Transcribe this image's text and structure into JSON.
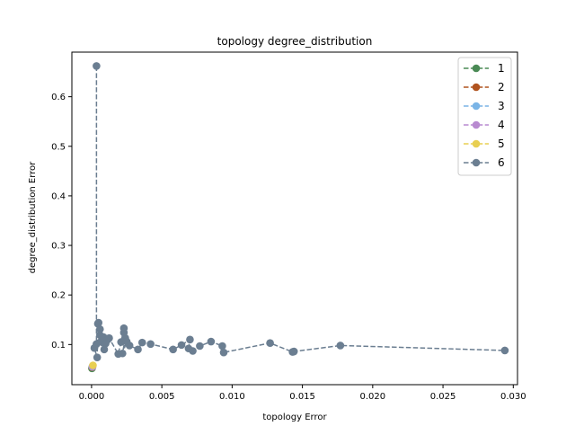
{
  "chart_data": {
    "type": "scatter",
    "title": "topology degree_distribution",
    "xlabel": "topology Error",
    "ylabel": "degree_distribution Error",
    "xlim": [
      -0.0014,
      0.0303
    ],
    "ylim": [
      0.019,
      0.69
    ],
    "xticks": [
      0.0,
      0.005,
      0.01,
      0.015,
      0.02,
      0.025,
      0.03
    ],
    "xtick_labels": [
      "0.000",
      "0.005",
      "0.010",
      "0.015",
      "0.020",
      "0.025",
      "0.030"
    ],
    "yticks": [
      0.1,
      0.2,
      0.3,
      0.4,
      0.5,
      0.6
    ],
    "ytick_labels": [
      "0.1",
      "0.2",
      "0.3",
      "0.4",
      "0.5",
      "0.6"
    ],
    "grid": false,
    "legend_position": "top-right",
    "line_style": "dashed",
    "marker": "circle",
    "series": [
      {
        "name": "1",
        "color": "#4a8a55",
        "x": [
          3e-05
        ],
        "y": [
          0.052
        ]
      },
      {
        "name": "2",
        "color": "#b0531f",
        "x": [
          5e-05
        ],
        "y": [
          0.054
        ]
      },
      {
        "name": "3",
        "color": "#7ab4e6",
        "x": [
          6e-05
        ],
        "y": [
          0.055
        ]
      },
      {
        "name": "4",
        "color": "#b88ad0",
        "x": [
          8e-05
        ],
        "y": [
          0.056
        ]
      },
      {
        "name": "5",
        "color": "#e8cf52",
        "x": [
          0.0001
        ],
        "y": [
          0.058
        ]
      },
      {
        "name": "6",
        "color": "#6b7e91",
        "x": [
          0.00035,
          0.00035,
          0.0002,
          0.0004,
          0.00045,
          0.0005,
          0.0006,
          0.0006,
          0.0007,
          0.0008,
          0.00085,
          0.0009,
          0.001,
          0.00115,
          0.00125,
          0.0019,
          0.0021,
          0.0023,
          0.0023,
          0.0024,
          0.0022,
          0.0025,
          0.0027,
          0.0033,
          0.0036,
          0.0042,
          0.0058,
          0.0064,
          0.007,
          0.0069,
          0.0072,
          0.0077,
          0.0085,
          0.0093,
          0.0094,
          0.0127,
          0.0143,
          0.0144,
          0.0177,
          0.0294
        ],
        "y": [
          0.662,
          0.101,
          0.093,
          0.074,
          0.142,
          0.144,
          0.131,
          0.119,
          0.107,
          0.104,
          0.115,
          0.09,
          0.102,
          0.11,
          0.113,
          0.081,
          0.105,
          0.133,
          0.124,
          0.113,
          0.082,
          0.106,
          0.098,
          0.09,
          0.104,
          0.101,
          0.09,
          0.099,
          0.11,
          0.092,
          0.087,
          0.097,
          0.106,
          0.097,
          0.084,
          0.103,
          0.085,
          0.086,
          0.098,
          0.088
        ]
      }
    ]
  }
}
